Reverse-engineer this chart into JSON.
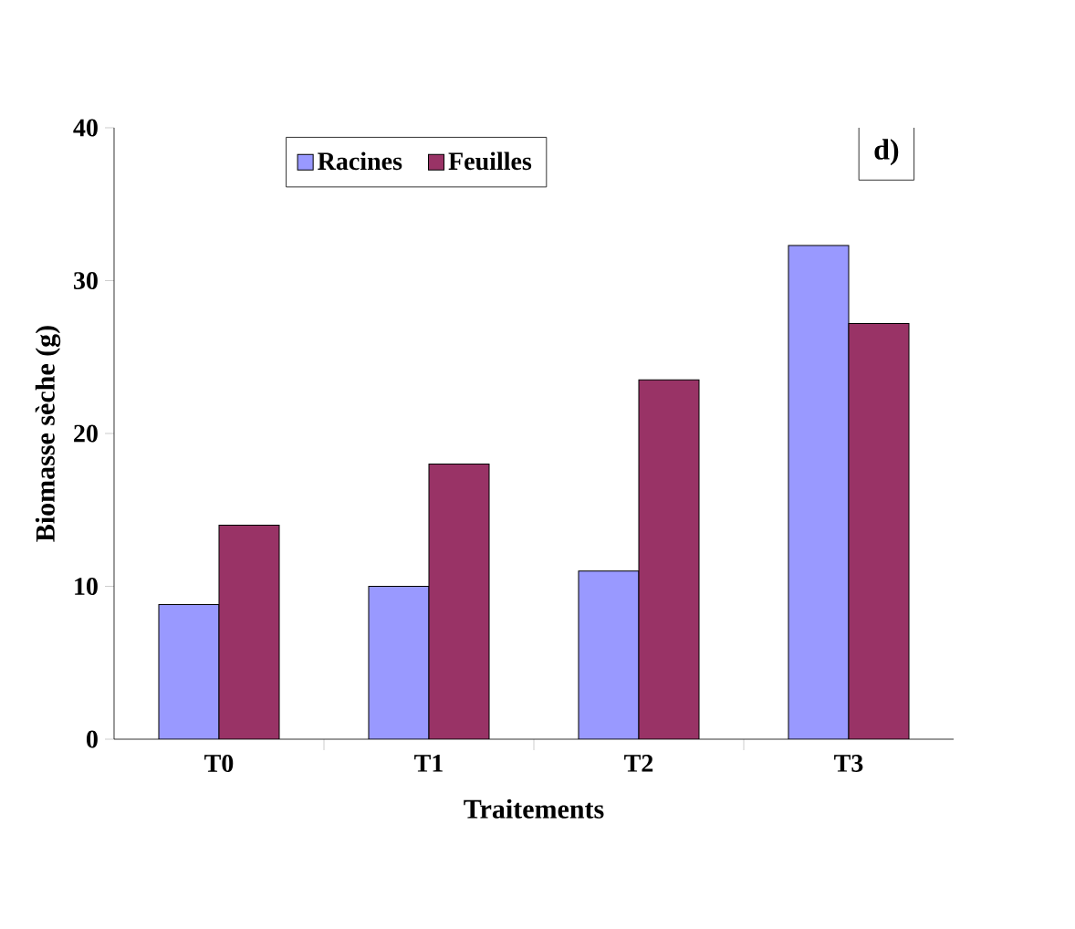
{
  "chart_data": {
    "type": "bar",
    "xlabel": "Traitements",
    "ylabel": "Biomasse sèche (g)",
    "categories": [
      "T0",
      "T1",
      "T2",
      "T3"
    ],
    "series": [
      {
        "name": "Racines",
        "color": "#9999ff",
        "values": [
          8.8,
          10,
          11,
          32.3
        ]
      },
      {
        "name": "Feuilles",
        "color": "#993366",
        "values": [
          14,
          18,
          23.5,
          27.2
        ]
      }
    ],
    "ylim": [
      0,
      40
    ],
    "yticks": [
      0,
      10,
      20,
      30,
      40
    ],
    "legend": "top",
    "grid": false,
    "annotations": [
      "d)"
    ]
  }
}
